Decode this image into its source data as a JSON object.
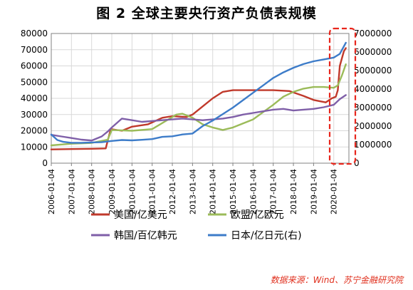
{
  "title": "图 2  全球主要央行资产负债表规模",
  "source": "数据来源：Wind、苏宁金融研究院",
  "colors": {
    "us": "#c0392b",
    "eu": "#9bbb59",
    "kr": "#7f5fa8",
    "jp": "#3d7cc9",
    "highlight": "#e8261c",
    "grid": "#d9d9d9",
    "axis": "#808080"
  },
  "chart_data": {
    "type": "line",
    "x_tick_labels": [
      "2006-01-04",
      "2007-01-04",
      "2008-01-04",
      "2009-01-04",
      "2010-01-04",
      "2011-01-04",
      "2012-01-04",
      "2013-01-04",
      "2014-01-04",
      "2015-01-04",
      "2016-01-04",
      "2017-01-04",
      "2018-01-04",
      "2019-01-04",
      "2020-01-04"
    ],
    "x_range": [
      2006.0,
      2020.75
    ],
    "y_left": {
      "ticks": [
        "0",
        "10000",
        "20000",
        "30000",
        "40000",
        "50000",
        "60000",
        "70000",
        "80000"
      ],
      "range": [
        0,
        80000
      ]
    },
    "y_right": {
      "ticks": [
        "0",
        "1000000",
        "2000000",
        "3000000",
        "4000000",
        "5000000",
        "6000000",
        "7000000"
      ],
      "range": [
        0,
        7000000
      ]
    },
    "grid": true,
    "legend_position": "bottom",
    "series": [
      {
        "key": "us",
        "name": "美国/亿美元",
        "axis": "left",
        "x": [
          2006.0,
          2007.0,
          2008.0,
          2008.7,
          2008.8,
          2008.95,
          2009.5,
          2010.0,
          2010.8,
          2011.5,
          2012.0,
          2012.7,
          2013.0,
          2013.5,
          2014.0,
          2014.5,
          2015.0,
          2016.0,
          2017.0,
          2017.8,
          2018.5,
          2019.0,
          2019.6,
          2019.9,
          2020.1,
          2020.2,
          2020.3,
          2020.5,
          2020.6
        ],
        "y": [
          8500,
          8700,
          8900,
          9100,
          14000,
          21000,
          20000,
          22500,
          24000,
          28000,
          29000,
          28500,
          30000,
          35000,
          40000,
          44000,
          45000,
          45000,
          45000,
          44500,
          41500,
          39000,
          37500,
          40000,
          41000,
          45000,
          60000,
          69000,
          71000
        ]
      },
      {
        "key": "eu",
        "name": "欧盟/亿欧元",
        "axis": "left",
        "x": [
          2006.0,
          2007.0,
          2008.0,
          2008.8,
          2009.0,
          2010.0,
          2011.0,
          2011.8,
          2012.2,
          2012.5,
          2013.0,
          2013.5,
          2014.0,
          2014.5,
          2015.0,
          2015.5,
          2016.0,
          2016.5,
          2017.0,
          2017.5,
          2018.0,
          2018.5,
          2019.0,
          2019.5,
          2020.0,
          2020.2,
          2020.4,
          2020.6
        ],
        "y": [
          11000,
          12000,
          12500,
          14500,
          20500,
          20000,
          21000,
          27000,
          30000,
          30500,
          28000,
          24000,
          22000,
          20500,
          22000,
          24500,
          27000,
          31500,
          36000,
          41000,
          44000,
          46000,
          47000,
          47000,
          46500,
          48000,
          54000,
          61000
        ]
      },
      {
        "key": "kr",
        "name": "韩国/百亿韩元",
        "axis": "left",
        "x": [
          2006.0,
          2006.5,
          2007.0,
          2007.5,
          2008.0,
          2008.5,
          2008.8,
          2009.0,
          2009.5,
          2010.0,
          2010.5,
          2011.0,
          2011.5,
          2012.0,
          2012.5,
          2013.0,
          2013.5,
          2014.0,
          2014.5,
          2015.0,
          2015.5,
          2016.0,
          2016.5,
          2017.0,
          2017.5,
          2018.0,
          2018.5,
          2019.0,
          2019.5,
          2020.0,
          2020.3,
          2020.6
        ],
        "y": [
          17500,
          16500,
          15500,
          14500,
          14000,
          16500,
          19500,
          22000,
          27500,
          26500,
          25500,
          26000,
          26500,
          27000,
          27500,
          27000,
          26500,
          27000,
          27500,
          28500,
          30000,
          31000,
          32000,
          33000,
          33500,
          32500,
          33000,
          33500,
          34500,
          36000,
          39500,
          42000
        ]
      },
      {
        "key": "jp",
        "name": "日本/亿日元(右)",
        "axis": "right",
        "x": [
          2006.0,
          2006.3,
          2006.6,
          2007.0,
          2007.5,
          2008.0,
          2008.5,
          2009.0,
          2009.5,
          2010.0,
          2010.5,
          2011.0,
          2011.5,
          2012.0,
          2012.5,
          2013.0,
          2013.5,
          2014.0,
          2014.5,
          2015.0,
          2015.5,
          2016.0,
          2016.5,
          2017.0,
          2017.5,
          2018.0,
          2018.5,
          2019.0,
          2019.5,
          2020.0,
          2020.3,
          2020.6
        ],
        "y": [
          1550000,
          1250000,
          1150000,
          1100000,
          1100000,
          1120000,
          1130000,
          1200000,
          1250000,
          1230000,
          1260000,
          1300000,
          1420000,
          1450000,
          1550000,
          1600000,
          2000000,
          2300000,
          2650000,
          3000000,
          3400000,
          3800000,
          4200000,
          4600000,
          4900000,
          5150000,
          5350000,
          5500000,
          5600000,
          5700000,
          5900000,
          6500000
        ]
      }
    ]
  }
}
